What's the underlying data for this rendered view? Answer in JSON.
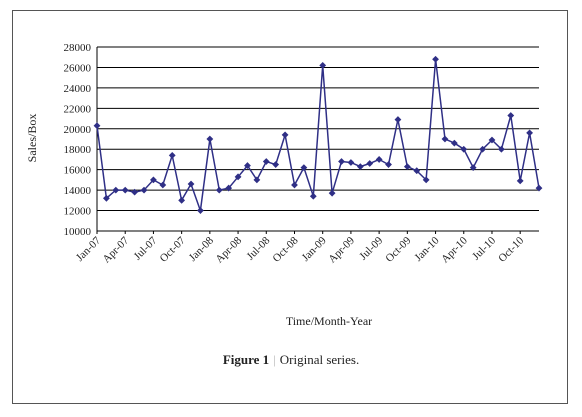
{
  "chart_data": {
    "type": "line",
    "title": "",
    "xlabel": "Time/Month-Year",
    "ylabel": "Sales/Box",
    "ylim": [
      10000,
      28000
    ],
    "yticks": [
      10000,
      12000,
      14000,
      16000,
      18000,
      20000,
      22000,
      24000,
      26000,
      28000
    ],
    "grid": true,
    "legend": "none",
    "color": "#2f2f86",
    "x_tick_labels": [
      "Jan-07",
      "Apr-07",
      "Jul-07",
      "Oct-07",
      "Jan-08",
      "Apr-08",
      "Jul-08",
      "Oct-08",
      "Jan-09",
      "Apr-09",
      "Jul-09",
      "Oct-09",
      "Jan-10",
      "Apr-10",
      "Jul-10",
      "Oct-10"
    ],
    "x_tick_every": 3,
    "x": [
      "Jan-07",
      "Feb-07",
      "Mar-07",
      "Apr-07",
      "May-07",
      "Jun-07",
      "Jul-07",
      "Aug-07",
      "Sep-07",
      "Oct-07",
      "Nov-07",
      "Dec-07",
      "Jan-08",
      "Feb-08",
      "Mar-08",
      "Apr-08",
      "May-08",
      "Jun-08",
      "Jul-08",
      "Aug-08",
      "Sep-08",
      "Oct-08",
      "Nov-08",
      "Dec-08",
      "Jan-09",
      "Feb-09",
      "Mar-09",
      "Apr-09",
      "May-09",
      "Jun-09",
      "Jul-09",
      "Aug-09",
      "Sep-09",
      "Oct-09",
      "Nov-09",
      "Dec-09",
      "Jan-10",
      "Feb-10",
      "Mar-10",
      "Apr-10",
      "May-10",
      "Jun-10",
      "Jul-10",
      "Aug-10",
      "Sep-10",
      "Oct-10",
      "Nov-10",
      "Dec-10"
    ],
    "series": [
      {
        "values": [
          20300,
          13200,
          14000,
          14000,
          13800,
          14000,
          15000,
          14500,
          17400,
          13000,
          14600,
          12000,
          19000,
          14000,
          14200,
          15300,
          16400,
          15000,
          16800,
          16500,
          19400,
          14500,
          16200,
          13400,
          26200,
          13700,
          16800,
          16700,
          16300,
          16600,
          17000,
          16500,
          20900,
          16300,
          15900,
          15000,
          26800,
          19000,
          18600,
          18000,
          16200,
          18000,
          18900,
          18000,
          21300,
          14900,
          19600,
          14200
        ]
      }
    ]
  },
  "caption": {
    "figure_label": "Figure 1",
    "separator": "|",
    "text": "Original series."
  }
}
